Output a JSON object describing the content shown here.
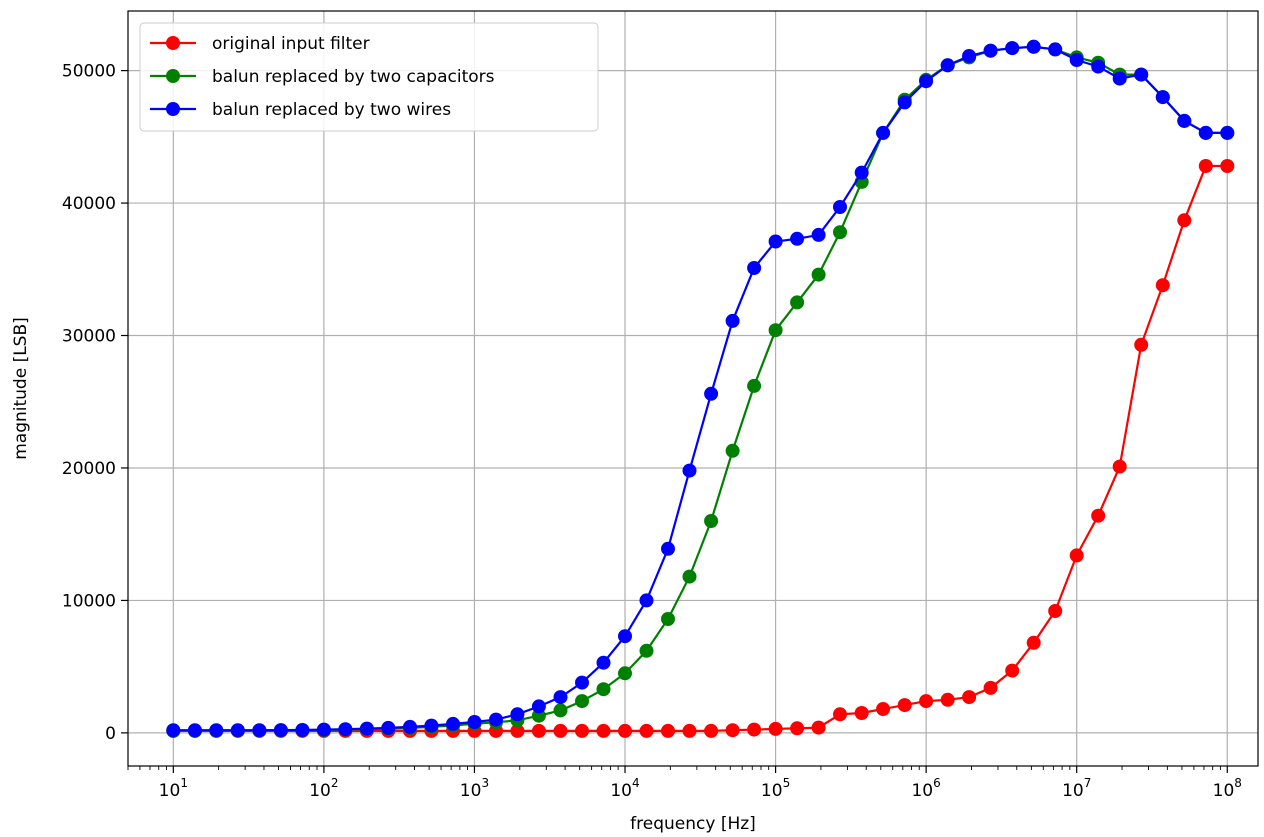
{
  "chart_data": {
    "type": "line",
    "title": "",
    "xlabel": "frequency [Hz]",
    "ylabel": "magnitude [LSB]",
    "xscale": "log",
    "xlim": [
      5,
      160000000
    ],
    "ylim": [
      -2500,
      54500
    ],
    "x_ticks": [
      {
        "value": 10,
        "base": "10",
        "exp": "1"
      },
      {
        "value": 100,
        "base": "10",
        "exp": "2"
      },
      {
        "value": 1000,
        "base": "10",
        "exp": "3"
      },
      {
        "value": 10000,
        "base": "10",
        "exp": "4"
      },
      {
        "value": 100000,
        "base": "10",
        "exp": "5"
      },
      {
        "value": 1000000,
        "base": "10",
        "exp": "6"
      },
      {
        "value": 10000000,
        "base": "10",
        "exp": "7"
      },
      {
        "value": 100000000,
        "base": "10",
        "exp": "8"
      }
    ],
    "y_ticks": [
      {
        "value": 0,
        "label": "0"
      },
      {
        "value": 10000,
        "label": "10000"
      },
      {
        "value": 20000,
        "label": "20000"
      },
      {
        "value": 30000,
        "label": "30000"
      },
      {
        "value": 40000,
        "label": "40000"
      },
      {
        "value": 50000,
        "label": "50000"
      }
    ],
    "grid": true,
    "legend_position": "upper-left",
    "x": [
      10,
      13.9,
      19.3,
      26.8,
      37.3,
      51.8,
      72,
      100,
      139,
      193,
      268,
      373,
      518,
      720,
      1000,
      1390,
      1930,
      2680,
      3730,
      5180,
      7200,
      10000,
      13900,
      19300,
      26800,
      37300,
      51800,
      72000,
      100000,
      139000,
      193000,
      268000,
      373000,
      518000,
      720000,
      1000000,
      1390000,
      1930000,
      2680000,
      3730000,
      5180000,
      7200000,
      10000000,
      13900000,
      19300000,
      26800000,
      37300000,
      51800000,
      72000000,
      100000000
    ],
    "series": [
      {
        "name": "original input filter",
        "color": "#ff0000",
        "values": [
          150,
          150,
          150,
          150,
          150,
          150,
          150,
          150,
          150,
          150,
          150,
          150,
          150,
          150,
          150,
          150,
          150,
          150,
          150,
          150,
          150,
          150,
          150,
          150,
          150,
          150,
          200,
          250,
          300,
          350,
          400,
          1400,
          1500,
          1800,
          2100,
          2400,
          2500,
          2700,
          3400,
          4700,
          6800,
          9200,
          13400,
          16400,
          20100,
          29300,
          33800,
          38700,
          42800,
          42800
        ]
      },
      {
        "name": "balun replaced by two capacitors",
        "color": "#008000",
        "values": [
          150,
          150,
          160,
          170,
          180,
          190,
          200,
          220,
          250,
          280,
          320,
          380,
          460,
          560,
          700,
          800,
          950,
          1300,
          1700,
          2400,
          3300,
          4500,
          6200,
          8600,
          11800,
          16000,
          21300,
          26200,
          30400,
          32500,
          34600,
          37800,
          41600,
          45300,
          47800,
          49300,
          50400,
          51000,
          51500,
          51700,
          51800,
          51600,
          51000,
          50600,
          49700,
          49700,
          48000,
          46200,
          45300,
          45300
        ]
      },
      {
        "name": "balun replaced by two wires",
        "color": "#0000ff",
        "values": [
          200,
          200,
          200,
          200,
          200,
          210,
          220,
          250,
          280,
          320,
          380,
          450,
          550,
          680,
          820,
          1000,
          1400,
          2000,
          2700,
          3800,
          5300,
          7300,
          10000,
          13900,
          19800,
          25600,
          31100,
          35100,
          37100,
          37300,
          37600,
          39700,
          42300,
          45300,
          47600,
          49200,
          50400,
          51100,
          51500,
          51700,
          51800,
          51600,
          50800,
          50300,
          49400,
          49700,
          48000,
          46200,
          45300,
          45300
        ]
      }
    ]
  }
}
